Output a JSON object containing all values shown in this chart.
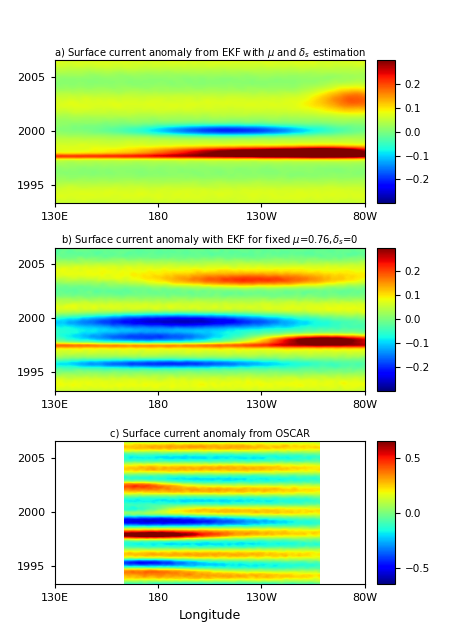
{
  "title_a": "a) Surface current anomaly from EKF with $\\mu$ and $\\delta_s$ estimation",
  "title_b": "b) Surface current anomaly with EKF for fixed $\\mu$=0.76,$\\delta_s$=0",
  "title_c": "c) Surface current anomaly from OSCAR",
  "xlabel": "Longitude",
  "lon_min": 130,
  "lon_max": 280,
  "year_min": 1993.0,
  "year_max": 2006.5,
  "clim_ab": 0.3,
  "clim_c": 0.65,
  "colorbar_ticks_ab": [
    -0.2,
    -0.1,
    0.0,
    0.1,
    0.2
  ],
  "colorbar_ticks_c": [
    -0.5,
    0.0,
    0.5
  ],
  "xtick_positions": [
    130,
    180,
    230,
    280
  ],
  "xtick_labels": [
    "130E",
    "180",
    "130W",
    "80W"
  ],
  "ytick_positions": [
    1995,
    2000,
    2005
  ],
  "background_color": "#ffffff",
  "seed": 42,
  "nlon": 300,
  "ntim": 160
}
